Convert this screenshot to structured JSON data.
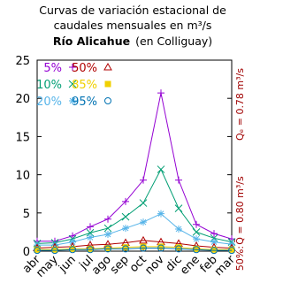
{
  "chart_data": {
    "type": "line",
    "title_lines": [
      "Curvas de variación estacional de",
      "caudales mensuales en m³/s"
    ],
    "subtitle_bold": "Río Alicahue",
    "subtitle": "(en Colliguay)",
    "categories": [
      "abr",
      "may",
      "jun",
      "jul",
      "ago",
      "sep",
      "oct",
      "nov",
      "dic",
      "ene",
      "feb",
      "mar"
    ],
    "ylim": [
      0,
      25
    ],
    "yticks": [
      0,
      5,
      10,
      15,
      20,
      25
    ],
    "series": [
      {
        "name": "5%",
        "color": "#9400d3",
        "marker": "plus",
        "values": [
          1.3,
          1.3,
          2.0,
          3.2,
          4.2,
          6.5,
          9.3,
          20.7,
          9.3,
          3.5,
          2.3,
          1.6
        ]
      },
      {
        "name": "10%",
        "color": "#009e73",
        "marker": "cross",
        "values": [
          1.0,
          1.1,
          1.6,
          2.4,
          3.0,
          4.5,
          6.3,
          10.7,
          5.6,
          2.5,
          1.7,
          1.2
        ]
      },
      {
        "name": "20%",
        "color": "#56b4e9",
        "marker": "star",
        "values": [
          0.8,
          0.8,
          1.2,
          1.8,
          2.2,
          3.0,
          3.8,
          4.9,
          2.9,
          1.6,
          1.2,
          0.9
        ]
      },
      {
        "name": "50%",
        "color": "#b00000",
        "marker": "triangle",
        "values": [
          0.4,
          0.5,
          0.6,
          0.8,
          0.9,
          1.1,
          1.4,
          1.2,
          1.0,
          0.7,
          0.5,
          0.4
        ]
      },
      {
        "name": "85%",
        "color": "#f0d000",
        "marker": "square",
        "values": [
          0.2,
          0.2,
          0.3,
          0.3,
          0.4,
          0.5,
          0.6,
          0.6,
          0.5,
          0.3,
          0.2,
          0.2
        ]
      },
      {
        "name": "95%",
        "color": "#0072b2",
        "marker": "circle",
        "values": [
          0.1,
          0.1,
          0.2,
          0.2,
          0.3,
          0.3,
          0.4,
          0.4,
          0.3,
          0.2,
          0.1,
          0.1
        ]
      }
    ],
    "annotations": [
      "50%:",
      "Q̄ = 0.80 m³/s",
      "Qₑ = 0.78 m³/s"
    ]
  }
}
